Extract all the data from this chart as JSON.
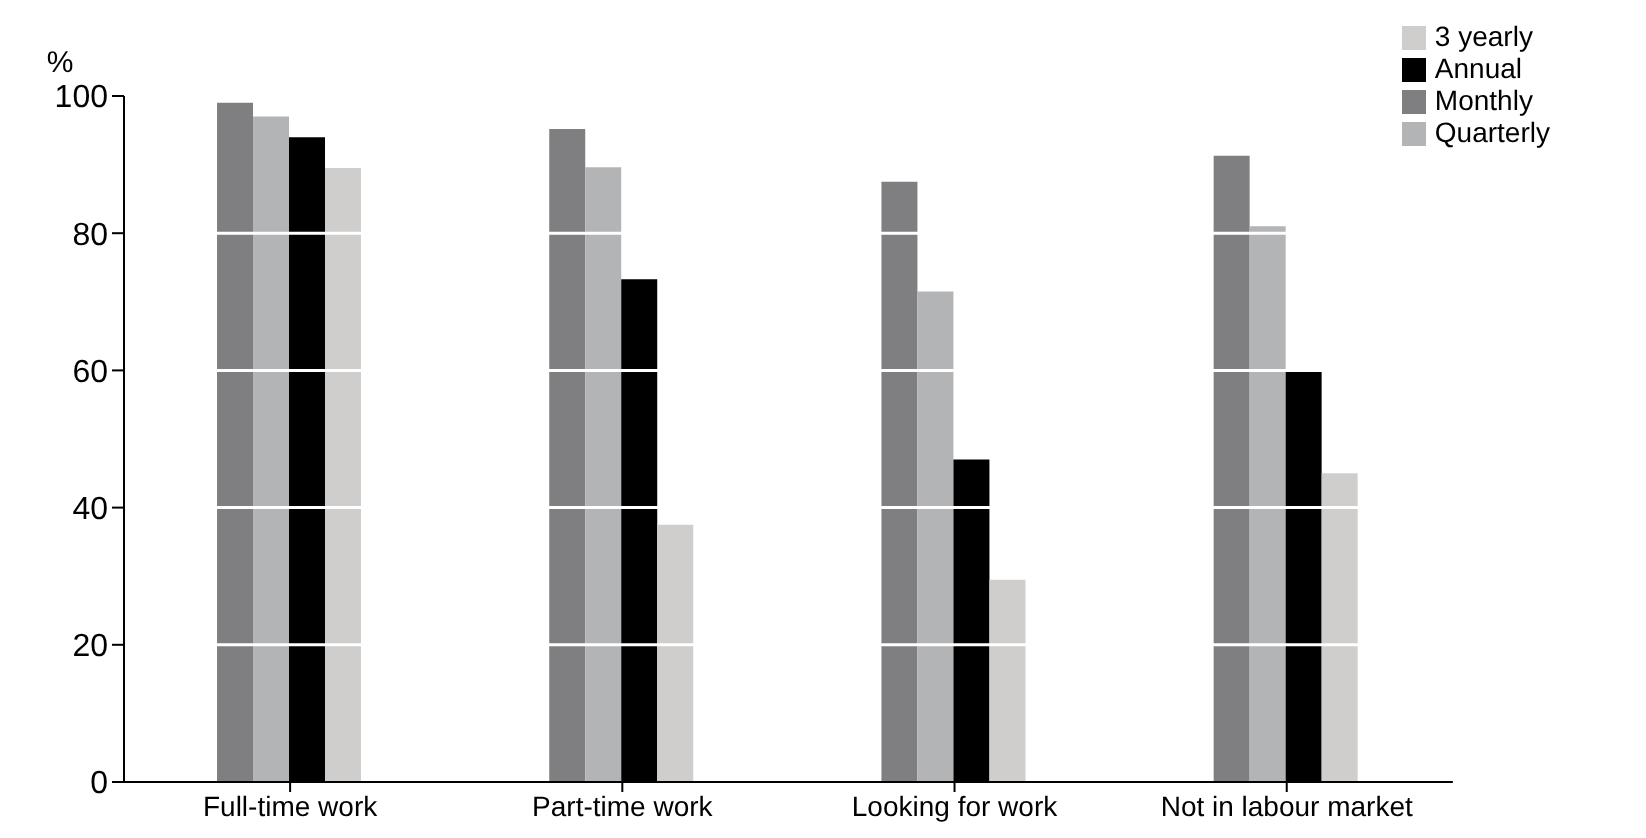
{
  "chart_data": {
    "type": "bar",
    "ylabel": "%",
    "categories": [
      "Full-time work",
      "Part-time work",
      "Looking for work",
      "Not in labour market"
    ],
    "series": [
      {
        "name": "Monthly",
        "color": "#7f7f81",
        "values": [
          99,
          95.2,
          87.5,
          91.3
        ]
      },
      {
        "name": "Quarterly",
        "color": "#b3b4b6",
        "values": [
          97,
          89.6,
          71.5,
          81
        ]
      },
      {
        "name": "Annual",
        "color": "#000000",
        "values": [
          94,
          73.3,
          47,
          59.8
        ]
      },
      {
        "name": "3 yearly",
        "color": "#cfcecc",
        "values": [
          89.5,
          37.5,
          29.5,
          45
        ]
      }
    ],
    "ylim": [
      0,
      100
    ],
    "yticks": [
      0,
      20,
      40,
      60,
      80,
      100
    ],
    "grid": "y",
    "legend": "top right"
  }
}
